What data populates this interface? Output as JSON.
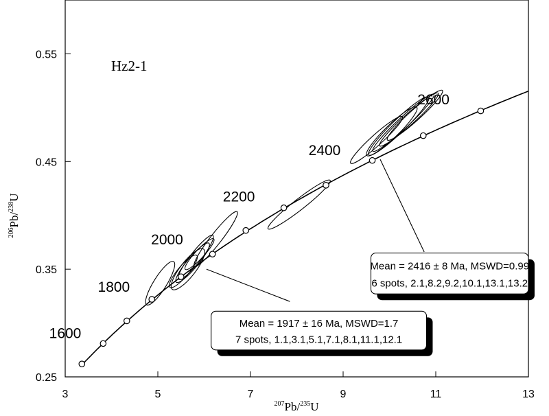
{
  "chart_data": {
    "type": "scatter",
    "subtype": "concordia-diagram",
    "sample_label": "Hz2-1",
    "xlabel": {
      "sup1": "207",
      "base1": "Pb/",
      "sup2": "235",
      "base2": "U"
    },
    "ylabel": {
      "sup1": "206",
      "base1": "Pb/",
      "sup2": "238",
      "base2": "U"
    },
    "xlim": [
      3,
      13
    ],
    "ylim": [
      0.25,
      0.6
    ],
    "x_ticks": [
      3,
      5,
      7,
      9,
      11,
      13
    ],
    "y_ticks": [
      0.25,
      0.35,
      0.45,
      0.55
    ],
    "y_tick_labels": [
      "0.25",
      "0.35",
      "0.45",
      "0.55"
    ],
    "grid": false,
    "concordia_age_marks": [
      {
        "x": 3.36,
        "y": 0.262
      },
      {
        "x": 3.82,
        "y": 0.281
      },
      {
        "x": 4.33,
        "y": 0.302
      },
      {
        "x": 4.87,
        "y": 0.322
      },
      {
        "x": 5.5,
        "y": 0.343
      },
      {
        "x": 6.18,
        "y": 0.364
      },
      {
        "x": 6.9,
        "y": 0.386
      },
      {
        "x": 7.72,
        "y": 0.407
      },
      {
        "x": 8.63,
        "y": 0.428
      },
      {
        "x": 9.63,
        "y": 0.451
      },
      {
        "x": 10.73,
        "y": 0.474
      },
      {
        "x": 11.97,
        "y": 0.497
      }
    ],
    "age_labels": [
      {
        "text": "1600",
        "x": 3.0,
        "y": 0.286
      },
      {
        "text": "1800",
        "x": 4.05,
        "y": 0.329
      },
      {
        "text": "2000",
        "x": 5.2,
        "y": 0.373
      },
      {
        "text": "2200",
        "x": 6.75,
        "y": 0.413
      },
      {
        "text": "2400",
        "x": 8.6,
        "y": 0.456
      },
      {
        "text": "2600",
        "x": 10.95,
        "y": 0.503
      }
    ],
    "error_ellipses": [
      {
        "cx": 5.05,
        "cy": 0.337,
        "rx": 0.55,
        "ry": 0.006,
        "angle": -58
      },
      {
        "cx": 5.55,
        "cy": 0.348,
        "rx": 0.45,
        "ry": 0.005,
        "angle": -50
      },
      {
        "cx": 5.65,
        "cy": 0.35,
        "rx": 0.55,
        "ry": 0.007,
        "angle": -52
      },
      {
        "cx": 5.75,
        "cy": 0.356,
        "rx": 0.55,
        "ry": 0.005,
        "angle": -50
      },
      {
        "cx": 5.82,
        "cy": 0.361,
        "rx": 0.6,
        "ry": 0.005,
        "angle": -52
      },
      {
        "cx": 5.9,
        "cy": 0.364,
        "rx": 0.45,
        "ry": 0.004,
        "angle": -47
      },
      {
        "cx": 6.25,
        "cy": 0.378,
        "rx": 0.75,
        "ry": 0.005,
        "angle": -52
      },
      {
        "cx": 8.05,
        "cy": 0.41,
        "rx": 0.85,
        "ry": 0.005,
        "angle": -38
      },
      {
        "cx": 9.72,
        "cy": 0.47,
        "rx": 0.75,
        "ry": 0.005,
        "angle": -42
      },
      {
        "cx": 10.05,
        "cy": 0.478,
        "rx": 0.75,
        "ry": 0.006,
        "angle": -44
      },
      {
        "cx": 10.2,
        "cy": 0.483,
        "rx": 0.9,
        "ry": 0.006,
        "angle": -44
      },
      {
        "cx": 10.3,
        "cy": 0.486,
        "rx": 0.9,
        "ry": 0.005,
        "angle": -43
      },
      {
        "cx": 10.42,
        "cy": 0.489,
        "rx": 0.85,
        "ry": 0.005,
        "angle": -42
      },
      {
        "cx": 10.55,
        "cy": 0.493,
        "rx": 0.8,
        "ry": 0.005,
        "angle": -42
      }
    ],
    "annotations": [
      {
        "lines": [
          "Mean = 2416 ± 8  Ma, MSWD=0.99",
          "6 spots, 2.1,8.2,9.2,10.1,13.1,13.2"
        ],
        "box": {
          "x0": 9.6,
          "y0": 0.365,
          "x1": 13.0,
          "y1": 0.327
        },
        "leader_from": {
          "x": 9.8,
          "y": 0.452
        },
        "leader_to": {
          "x": 10.75,
          "y": 0.366
        }
      },
      {
        "lines": [
          "Mean = 1917 ± 16 Ma, MSWD=1.7",
          "7 spots, 1.1,3.1,5.1,7.1,8.1,11.1,12.1"
        ],
        "box": {
          "x0": 6.15,
          "y0": 0.311,
          "x1": 10.8,
          "y1": 0.275
        },
        "leader_from": {
          "x": 6.05,
          "y": 0.35
        },
        "leader_to": {
          "x": 7.85,
          "y": 0.32
        }
      }
    ]
  }
}
